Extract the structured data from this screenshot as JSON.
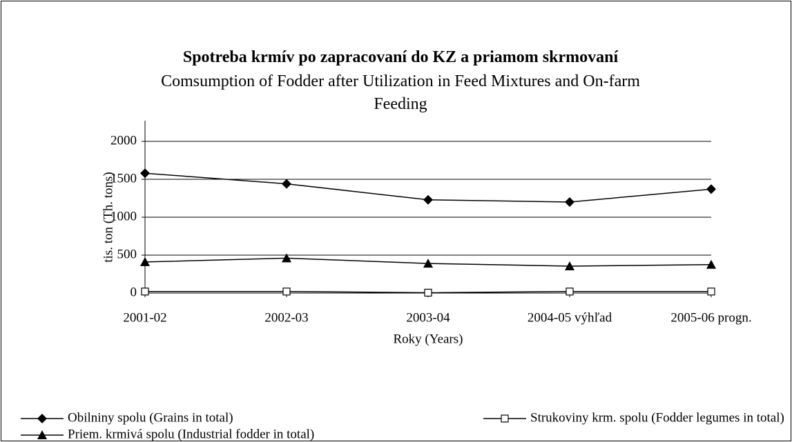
{
  "chart_data": {
    "type": "line",
    "title": "Spotreba krmív po zapracovaní do KZ a priamom skrmovaní",
    "subtitle": "Comsumption of Fodder after Utilization in Feed Mixtures and On-farm Feeding",
    "x_label": "Roky (Years)",
    "y_label": "tis. ton (Th. tons)",
    "categories": [
      "2001-02",
      "2002-03",
      "2003-04",
      "2004-05 výhľad",
      "2005-06 progn."
    ],
    "series": [
      {
        "name": "Obilniny spolu (Grains in total)",
        "color": "#000000",
        "marker": "diamond",
        "values": [
          1580,
          1440,
          1230,
          1200,
          1370
        ]
      },
      {
        "name": "Strukoviny krm. spolu (Fodder legumes in total)",
        "color": "#000000",
        "marker": "square",
        "values": [
          20,
          20,
          5,
          20,
          20
        ]
      },
      {
        "name": "Priem. krmivá spolu (Industrial fodder in total)",
        "color": "#000000",
        "marker": "triangle",
        "values": [
          410,
          460,
          390,
          355,
          375
        ]
      }
    ],
    "ylim": [
      0,
      2000
    ],
    "yticks": [
      0,
      500,
      1000,
      1500,
      2000
    ],
    "grid": true,
    "legend": "bottom"
  }
}
